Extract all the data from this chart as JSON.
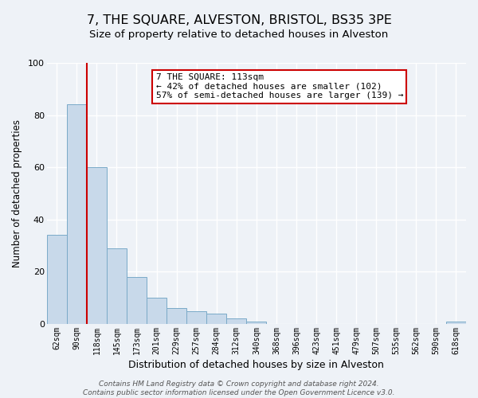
{
  "title": "7, THE SQUARE, ALVESTON, BRISTOL, BS35 3PE",
  "subtitle": "Size of property relative to detached houses in Alveston",
  "xlabel": "Distribution of detached houses by size in Alveston",
  "ylabel": "Number of detached properties",
  "bar_labels": [
    "62sqm",
    "90sqm",
    "118sqm",
    "145sqm",
    "173sqm",
    "201sqm",
    "229sqm",
    "257sqm",
    "284sqm",
    "312sqm",
    "340sqm",
    "368sqm",
    "396sqm",
    "423sqm",
    "451sqm",
    "479sqm",
    "507sqm",
    "535sqm",
    "562sqm",
    "590sqm",
    "618sqm"
  ],
  "bar_values": [
    34,
    84,
    60,
    29,
    18,
    10,
    6,
    5,
    4,
    2,
    1,
    0,
    0,
    0,
    0,
    0,
    0,
    0,
    0,
    0,
    1
  ],
  "bar_color": "#c8d9ea",
  "bar_edge_color": "#7aaac8",
  "vline_color": "#cc0000",
  "ylim": [
    0,
    100
  ],
  "annotation_text": "7 THE SQUARE: 113sqm\n← 42% of detached houses are smaller (102)\n57% of semi-detached houses are larger (139) →",
  "annotation_box_color": "#ffffff",
  "annotation_box_edge": "#cc0000",
  "footer_text": "Contains HM Land Registry data © Crown copyright and database right 2024.\nContains public sector information licensed under the Open Government Licence v3.0.",
  "background_color": "#eef2f7",
  "plot_bg_color": "#eef2f7",
  "grid_color": "#ffffff",
  "title_fontsize": 11.5,
  "subtitle_fontsize": 9.5,
  "xlabel_fontsize": 9,
  "ylabel_fontsize": 8.5,
  "tick_fontsize": 7,
  "annotation_fontsize": 8,
  "footer_fontsize": 6.5
}
